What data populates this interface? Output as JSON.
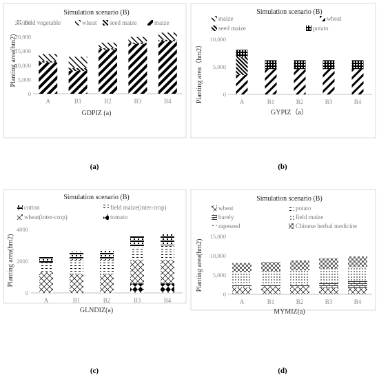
{
  "chart_data": [
    {
      "type": "bar",
      "stacked": true,
      "caption": "(a)",
      "title": "Simulation scenario (B)",
      "xlabel": "GDPIZ (a)",
      "ylabel": "Planting area(hm2)",
      "categories": [
        "A",
        "B1",
        "B2",
        "B3",
        "B4"
      ],
      "ylim": [
        0,
        25000
      ],
      "yticks": [
        "0",
        "5,000",
        "10,000",
        "15,000",
        "20,000",
        "25,000"
      ],
      "grid": false,
      "legend_position": "top",
      "series": [
        {
          "name": "maize",
          "pattern": "diag-thick",
          "values": [
            11000,
            8000,
            15500,
            17500,
            18500
          ]
        },
        {
          "name": "seed maize",
          "pattern": "diag-dense",
          "values": [
            500,
            1000,
            500,
            500,
            500
          ]
        },
        {
          "name": "wheat",
          "pattern": "diag-thin",
          "values": [
            2500,
            4000,
            2000,
            2000,
            2500
          ]
        },
        {
          "name": "field vegetable",
          "pattern": "dots",
          "values": [
            0,
            0,
            0,
            0,
            0
          ]
        }
      ]
    },
    {
      "type": "bar",
      "stacked": true,
      "caption": "(b)",
      "title": "Simulation scenario (B)",
      "xlabel": "GYPIZ（a）",
      "ylabel": "Planting area（hm2）",
      "categories": [
        "A",
        "B1",
        "B2",
        "B3",
        "B4"
      ],
      "ylim": [
        0,
        10000
      ],
      "yticks": [
        "0",
        "5,000",
        "10,000"
      ],
      "grid": false,
      "legend_position": "top",
      "series": [
        {
          "name": "maize",
          "pattern": "diag-thin",
          "values": [
            0,
            0,
            0,
            0,
            0
          ]
        },
        {
          "name": "wheat",
          "pattern": "diag-back-thin",
          "values": [
            3500,
            4600,
            4600,
            4600,
            4600
          ]
        },
        {
          "name": "seed maize",
          "pattern": "diag-dense",
          "values": [
            3300,
            0,
            0,
            0,
            0
          ]
        },
        {
          "name": "potato",
          "pattern": "grid",
          "values": [
            1300,
            1600,
            1600,
            1600,
            1600
          ]
        }
      ]
    },
    {
      "type": "bar",
      "stacked": true,
      "caption": "(c)",
      "title": "Simulation scenario (B)",
      "xlabel": "GLNDIZ(a)",
      "ylabel": "Planting area(hm2)",
      "categories": [
        "A",
        "B1",
        "B2",
        "B3",
        "B4"
      ],
      "ylim": [
        0,
        4000
      ],
      "yticks": [
        "0",
        "2000",
        "4000"
      ],
      "grid": false,
      "legend_position": "top",
      "series": [
        {
          "name": "tomato",
          "pattern": "diamonds",
          "values": [
            0,
            0,
            0,
            600,
            600
          ]
        },
        {
          "name": "wheat(inter-crop)",
          "pattern": "diag-cross",
          "values": [
            1300,
            1200,
            1200,
            1500,
            1500
          ]
        },
        {
          "name": "field maize(inter-crop)",
          "pattern": "dash-rows",
          "values": [
            600,
            900,
            900,
            800,
            900
          ]
        },
        {
          "name": "cotton",
          "pattern": "stripes-h",
          "values": [
            400,
            500,
            600,
            700,
            700
          ]
        }
      ]
    },
    {
      "type": "bar",
      "stacked": true,
      "caption": "(d)",
      "title": "Simulation scenario (B)",
      "xlabel": "MYMIZ(a)",
      "ylabel": "Planting area(hm2)",
      "categories": [
        "A",
        "B1",
        "B2",
        "B3",
        "B4"
      ],
      "ylim": [
        0,
        15000
      ],
      "yticks": [
        "0",
        "5,000",
        "10,000",
        "15,000"
      ],
      "grid": false,
      "legend_position": "top",
      "series": [
        {
          "name": "wheat",
          "pattern": "diag-cross",
          "values": [
            1800,
            2100,
            2100,
            1700,
            1600
          ]
        },
        {
          "name": "barely",
          "pattern": "bricks",
          "values": [
            700,
            400,
            600,
            1300,
            1800
          ]
        },
        {
          "name": "potato",
          "pattern": "dash-rows",
          "values": [
            0,
            0,
            0,
            0,
            0
          ]
        },
        {
          "name": "field maize",
          "pattern": "dots",
          "values": [
            3200,
            3500,
            3500,
            3700,
            3600
          ]
        },
        {
          "name": "rapeseed",
          "pattern": "dots-sparse",
          "values": [
            0,
            0,
            0,
            0,
            0
          ]
        },
        {
          "name": "Chinese herbal medicine",
          "pattern": "checker",
          "values": [
            2400,
            2400,
            2600,
            2700,
            2800
          ]
        }
      ]
    }
  ],
  "legends": [
    [
      "field vegetable",
      "wheat",
      "seed maize",
      "maize"
    ],
    [
      "maize",
      "wheat",
      "seed maize",
      "potato"
    ],
    [
      "cotton",
      "field maize(inter-crop)",
      "wheat(inter-crop)",
      "tomato"
    ],
    [
      "wheat",
      "potato",
      "barely",
      "field maize",
      "rapeseed",
      "Chinese herbal medicine"
    ]
  ]
}
